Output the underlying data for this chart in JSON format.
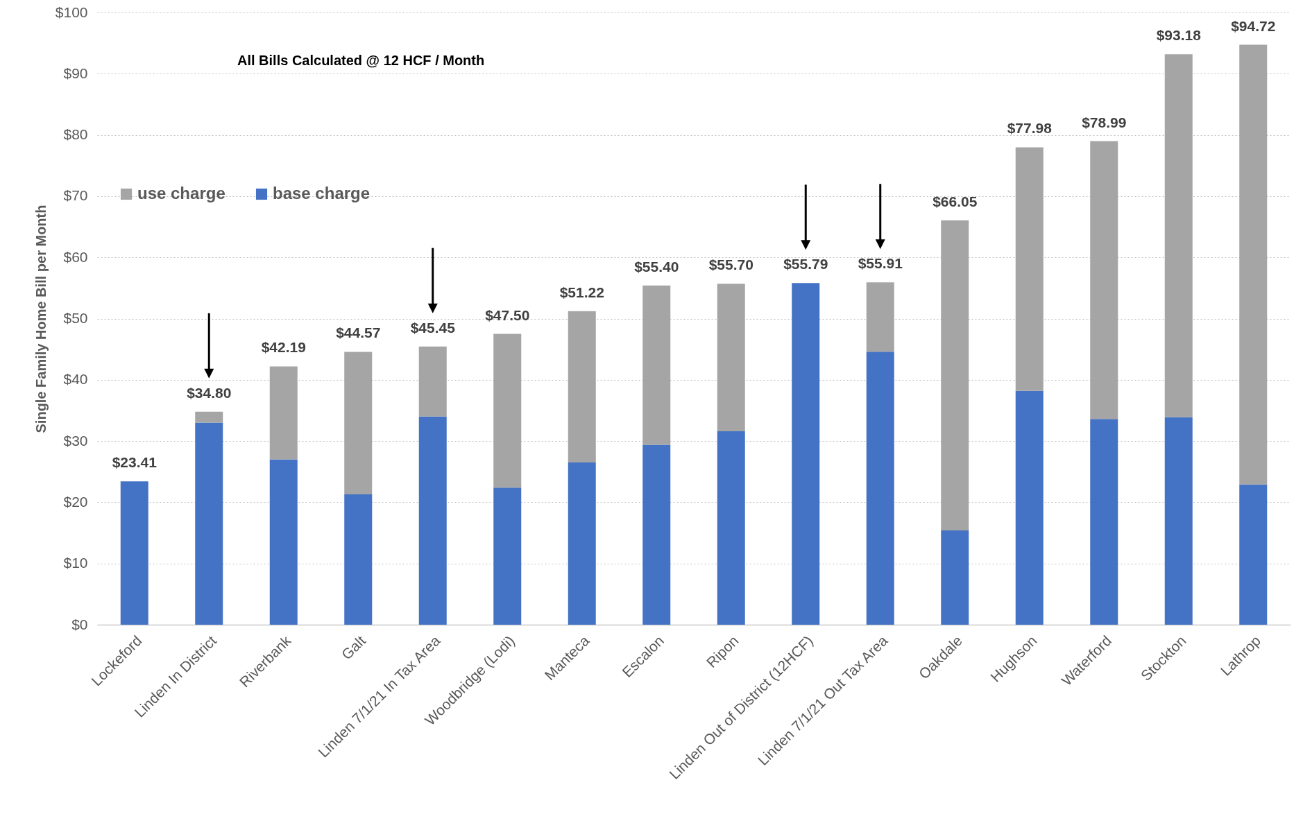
{
  "chart_data": {
    "type": "bar",
    "stacked": true,
    "ylabel": "Single Family Home Bill per Month",
    "annotations": [
      "All Bills Calculated @ 12 HCF / Month"
    ],
    "categories": [
      "Lockeford",
      "Linden In District",
      "Riverbank",
      "Galt",
      "Linden 7/1/21 In Tax Area",
      "Woodbridge (Lodi)",
      "Manteca",
      "Escalon",
      "Ripon",
      "Linden Out of District (12HCF)",
      "Linden 7/1/21 Out Tax Area",
      "Oakdale",
      "Hughson",
      "Waterford",
      "Stockton",
      "Lathrop"
    ],
    "series": [
      {
        "name": "base charge",
        "color": "#4472c4",
        "values": [
          23.41,
          33.0,
          27.0,
          21.3,
          34.0,
          22.4,
          26.5,
          29.4,
          31.6,
          55.79,
          44.6,
          15.4,
          38.2,
          33.6,
          33.9,
          22.9
        ]
      },
      {
        "name": "use charge",
        "color": "#a5a5a5",
        "values": [
          null,
          1.8,
          15.19,
          23.27,
          11.45,
          25.1,
          24.72,
          26.0,
          24.1,
          null,
          11.31,
          50.65,
          39.78,
          45.39,
          59.28,
          71.82
        ]
      }
    ],
    "totals": [
      "$23.41",
      "$34.80",
      "$42.19",
      "$44.57",
      "$45.45",
      "$47.50",
      "$51.22",
      "$55.40",
      "$55.70",
      "$55.79",
      "$55.91",
      "$66.05",
      "$77.98",
      "$78.99",
      "$93.18",
      "$94.72"
    ],
    "ylim": [
      0,
      100
    ],
    "yticks": [
      {
        "value": 0,
        "label": "$0"
      },
      {
        "value": 10,
        "label": "$10"
      },
      {
        "value": 20,
        "label": "$20"
      },
      {
        "value": 30,
        "label": "$30"
      },
      {
        "value": 40,
        "label": "$40"
      },
      {
        "value": 50,
        "label": "$50"
      },
      {
        "value": 60,
        "label": "$60"
      },
      {
        "value": 70,
        "label": "$70"
      },
      {
        "value": 80,
        "label": "$80"
      },
      {
        "value": 90,
        "label": "$90"
      },
      {
        "value": 100,
        "label": "$100"
      }
    ],
    "grid": "y",
    "legend": "top left"
  }
}
